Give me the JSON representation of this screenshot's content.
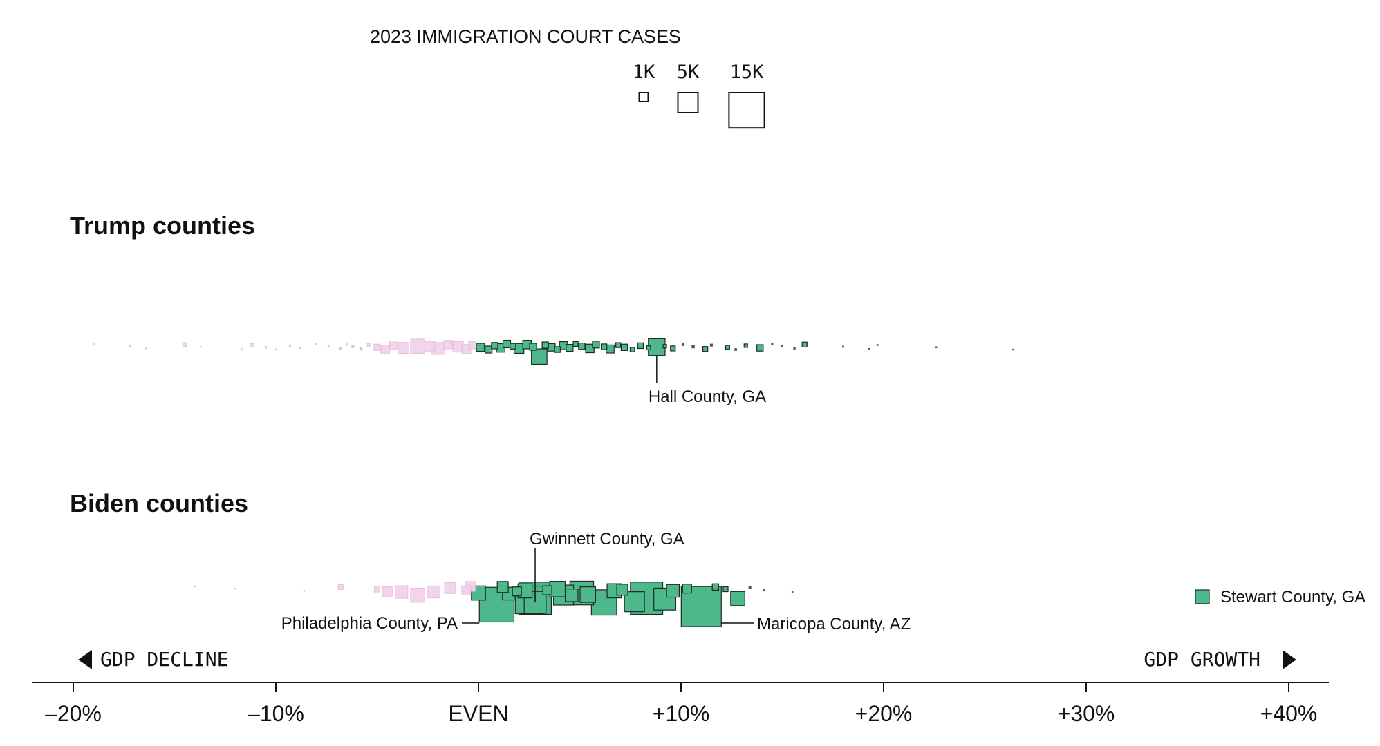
{
  "chart_data": {
    "type": "scatter",
    "title": "2023 IMMIGRATION COURT CASES",
    "size_legend": [
      {
        "label": "1K",
        "value": 1000
      },
      {
        "label": "5K",
        "value": 5000
      },
      {
        "label": "15K",
        "value": 15000
      }
    ],
    "xlim": [
      -20,
      42
    ],
    "x_ticks": [
      {
        "value": -20,
        "label": "–20%"
      },
      {
        "value": -10,
        "label": "–10%"
      },
      {
        "value": 0,
        "label": "EVEN"
      },
      {
        "value": 10,
        "label": "+10%"
      },
      {
        "value": 20,
        "label": "+20%"
      },
      {
        "value": 30,
        "label": "+30%"
      },
      {
        "value": 40,
        "label": "+40%"
      }
    ],
    "direction_labels": {
      "left": "GDP DECLINE",
      "right": "GDP GROWTH"
    },
    "colors": {
      "growth": "#4db88b",
      "decline": "#f2d2ea",
      "stroke": "#1f2a24",
      "faint": "#c9c9c9"
    },
    "panels": [
      {
        "title": "Trump counties",
        "points": [
          {
            "x": -19.0,
            "cases": 30
          },
          {
            "x": -17.2,
            "cases": 60
          },
          {
            "x": -16.4,
            "cases": 40
          },
          {
            "x": -14.5,
            "cases": 200
          },
          {
            "x": -13.7,
            "cases": 30
          },
          {
            "x": -11.7,
            "cases": 40
          },
          {
            "x": -11.2,
            "cases": 150
          },
          {
            "x": -10.5,
            "cases": 60
          },
          {
            "x": -10.0,
            "cases": 40
          },
          {
            "x": -9.3,
            "cases": 50
          },
          {
            "x": -8.8,
            "cases": 40
          },
          {
            "x": -8.0,
            "cases": 60
          },
          {
            "x": -7.4,
            "cases": 50
          },
          {
            "x": -6.8,
            "cases": 80
          },
          {
            "x": -6.5,
            "cases": 60
          },
          {
            "x": -6.2,
            "cases": 100
          },
          {
            "x": -5.8,
            "cases": 120
          },
          {
            "x": -5.4,
            "cases": 150
          },
          {
            "x": -5.0,
            "cases": 500
          },
          {
            "x": -4.6,
            "cases": 900
          },
          {
            "x": -4.2,
            "cases": 700
          },
          {
            "x": -3.7,
            "cases": 1500
          },
          {
            "x": -3.0,
            "cases": 2500
          },
          {
            "x": -2.4,
            "cases": 1200
          },
          {
            "x": -2.0,
            "cases": 1800
          },
          {
            "x": -1.5,
            "cases": 900
          },
          {
            "x": -1.0,
            "cases": 1400
          },
          {
            "x": -0.6,
            "cases": 1000
          },
          {
            "x": -0.3,
            "cases": 700
          },
          {
            "x": 0.1,
            "cases": 800
          },
          {
            "x": 0.5,
            "cases": 600
          },
          {
            "x": 0.8,
            "cases": 500
          },
          {
            "x": 1.1,
            "cases": 900
          },
          {
            "x": 1.4,
            "cases": 700
          },
          {
            "x": 1.7,
            "cases": 400
          },
          {
            "x": 2.0,
            "cases": 1200
          },
          {
            "x": 2.4,
            "cases": 900
          },
          {
            "x": 2.7,
            "cases": 600
          },
          {
            "x": 3.0,
            "cases": 3000
          },
          {
            "x": 3.3,
            "cases": 500
          },
          {
            "x": 3.6,
            "cases": 700
          },
          {
            "x": 3.9,
            "cases": 400
          },
          {
            "x": 4.2,
            "cases": 800
          },
          {
            "x": 4.5,
            "cases": 600
          },
          {
            "x": 4.8,
            "cases": 300
          },
          {
            "x": 5.1,
            "cases": 500
          },
          {
            "x": 5.5,
            "cases": 900
          },
          {
            "x": 5.8,
            "cases": 600
          },
          {
            "x": 6.2,
            "cases": 400
          },
          {
            "x": 6.5,
            "cases": 800
          },
          {
            "x": 6.9,
            "cases": 300
          },
          {
            "x": 7.2,
            "cases": 500
          },
          {
            "x": 7.6,
            "cases": 250
          },
          {
            "x": 8.0,
            "cases": 400
          },
          {
            "x": 8.4,
            "cases": 200
          },
          {
            "x": 8.8,
            "cases": 3500
          },
          {
            "x": 9.2,
            "cases": 150
          },
          {
            "x": 9.6,
            "cases": 300
          },
          {
            "x": 10.1,
            "cases": 100
          },
          {
            "x": 10.6,
            "cases": 120
          },
          {
            "x": 11.2,
            "cases": 300
          },
          {
            "x": 11.5,
            "cases": 100
          },
          {
            "x": 12.3,
            "cases": 200
          },
          {
            "x": 12.7,
            "cases": 80
          },
          {
            "x": 13.2,
            "cases": 150
          },
          {
            "x": 13.9,
            "cases": 500
          },
          {
            "x": 14.5,
            "cases": 60
          },
          {
            "x": 15.0,
            "cases": 50
          },
          {
            "x": 15.6,
            "cases": 60
          },
          {
            "x": 16.1,
            "cases": 300
          },
          {
            "x": 18.0,
            "cases": 50
          },
          {
            "x": 19.3,
            "cases": 40
          },
          {
            "x": 19.7,
            "cases": 40
          },
          {
            "x": 22.6,
            "cases": 40
          },
          {
            "x": 26.4,
            "cases": 30
          }
        ],
        "annotations": [
          {
            "label": "Hall County, GA",
            "x": 8.8,
            "cases": 3500
          }
        ]
      },
      {
        "title": "Biden counties",
        "points": [
          {
            "x": -14.0,
            "cases": 30
          },
          {
            "x": -12.0,
            "cases": 30
          },
          {
            "x": -8.6,
            "cases": 30
          },
          {
            "x": -6.8,
            "cases": 300
          },
          {
            "x": -5.0,
            "cases": 400
          },
          {
            "x": -4.5,
            "cases": 1200
          },
          {
            "x": -3.8,
            "cases": 2000
          },
          {
            "x": -3.0,
            "cases": 2500
          },
          {
            "x": -2.2,
            "cases": 1800
          },
          {
            "x": -1.4,
            "cases": 1500
          },
          {
            "x": -0.6,
            "cases": 1000
          },
          {
            "x": -0.4,
            "cases": 1200
          },
          {
            "x": 0.0,
            "cases": 2500
          },
          {
            "x": 0.9,
            "cases": 15000
          },
          {
            "x": 1.2,
            "cases": 1500
          },
          {
            "x": 1.5,
            "cases": 2000
          },
          {
            "x": 1.9,
            "cases": 1000
          },
          {
            "x": 2.3,
            "cases": 2500
          },
          {
            "x": 2.5,
            "cases": 9500
          },
          {
            "x": 2.8,
            "cases": 6000
          },
          {
            "x": 2.8,
            "cases": 13000
          },
          {
            "x": 3.4,
            "cases": 1000
          },
          {
            "x": 3.9,
            "cases": 3000
          },
          {
            "x": 4.2,
            "cases": 5000
          },
          {
            "x": 4.6,
            "cases": 2000
          },
          {
            "x": 5.1,
            "cases": 7000
          },
          {
            "x": 5.4,
            "cases": 3000
          },
          {
            "x": 6.2,
            "cases": 8000
          },
          {
            "x": 6.7,
            "cases": 2500
          },
          {
            "x": 7.1,
            "cases": 1500
          },
          {
            "x": 7.7,
            "cases": 5000
          },
          {
            "x": 8.3,
            "cases": 13000
          },
          {
            "x": 9.2,
            "cases": 6000
          },
          {
            "x": 9.6,
            "cases": 2000
          },
          {
            "x": 10.3,
            "cases": 1000
          },
          {
            "x": 11.0,
            "cases": 20000
          },
          {
            "x": 11.7,
            "cases": 500
          },
          {
            "x": 12.2,
            "cases": 300
          },
          {
            "x": 12.8,
            "cases": 2500
          },
          {
            "x": 13.4,
            "cases": 100
          },
          {
            "x": 14.1,
            "cases": 80
          },
          {
            "x": 15.5,
            "cases": 40
          }
        ],
        "annotations": [
          {
            "label": "Gwinnett County, GA",
            "x": 2.8,
            "cases": 6000
          },
          {
            "label": "Philadelphia County, PA",
            "x": 0.9,
            "cases": 15000
          },
          {
            "label": "Maricopa County, AZ",
            "x": 11.0,
            "cases": 20000
          }
        ],
        "outlier": {
          "label": "Stewart County, GA"
        }
      }
    ]
  }
}
